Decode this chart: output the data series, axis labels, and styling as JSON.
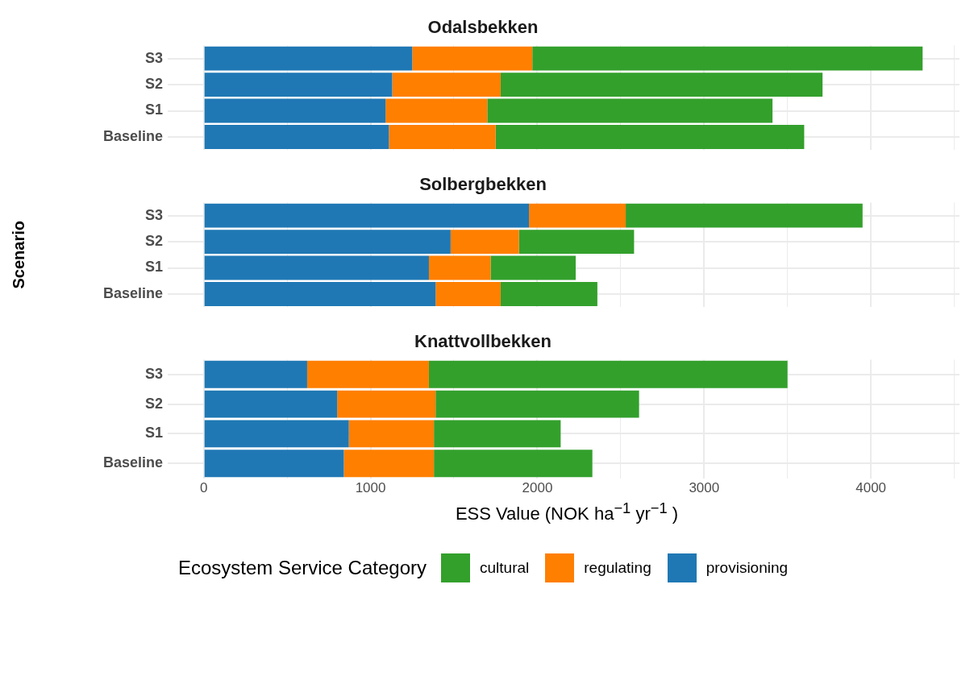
{
  "chart_data": [
    {
      "type": "bar",
      "orientation": "horizontal",
      "stacked": true,
      "title": "Odalsbekken",
      "categories": [
        "S3",
        "S2",
        "S1",
        "Baseline"
      ],
      "series": [
        {
          "color": "#1f78b4",
          "values": [
            1250,
            1130,
            1090,
            1110
          ]
        },
        {
          "color": "#ff7f00",
          "values": [
            720,
            650,
            610,
            640
          ]
        },
        {
          "color": "#33a02c",
          "values": [
            2340,
            1930,
            1710,
            1850
          ]
        }
      ],
      "xlim": [
        -216,
        4531
      ],
      "xticks": [
        0,
        {
          "value": 500,
          "label": null
        },
        1000,
        {
          "value": 1500,
          "label": null
        },
        2000,
        {
          "value": 2500,
          "label": null
        },
        3000,
        {
          "value": 3500,
          "label": null
        },
        4000,
        {
          "value": 4500,
          "label": null
        }
      ],
      "grid": true,
      "tick_labels": "y"
    },
    {
      "type": "bar",
      "orientation": "horizontal",
      "stacked": true,
      "title": "Solbergbekken",
      "ylabel": "Scenario",
      "categories": [
        "S3",
        "S2",
        "S1",
        "Baseline"
      ],
      "series": [
        {
          "color": "#1f78b4",
          "values": [
            1950,
            1480,
            1350,
            1390
          ]
        },
        {
          "color": "#ff7f00",
          "values": [
            580,
            410,
            370,
            390
          ]
        },
        {
          "color": "#33a02c",
          "values": [
            1420,
            690,
            510,
            580
          ]
        }
      ],
      "xlim": [
        -216,
        4531
      ],
      "xticks": [
        0,
        {
          "value": 500,
          "label": null
        },
        1000,
        {
          "value": 1500,
          "label": null
        },
        2000,
        {
          "value": 2500,
          "label": null
        },
        3000,
        {
          "value": 3500,
          "label": null
        },
        4000,
        {
          "value": 4500,
          "label": null
        }
      ],
      "grid": true,
      "tick_labels": "y"
    },
    {
      "type": "bar",
      "orientation": "horizontal",
      "stacked": true,
      "title": "Knattvollbekken",
      "xlabel": "ESS Value (NOK ha$^{−1}$ yr$^{−1}$ )",
      "categories": [
        "S3",
        "S2",
        "S1",
        "Baseline"
      ],
      "series": [
        {
          "name": "provisioning",
          "color": "#1f78b4",
          "values": [
            620,
            800,
            870,
            840
          ]
        },
        {
          "name": "regulating",
          "color": "#ff7f00",
          "values": [
            730,
            590,
            510,
            540
          ]
        },
        {
          "name": "cultural",
          "color": "#33a02c",
          "values": [
            2150,
            1220,
            760,
            950
          ]
        }
      ],
      "xlim": [
        -216,
        4531
      ],
      "xticks": [
        0,
        {
          "value": 500,
          "label": null
        },
        1000,
        {
          "value": 1500,
          "label": null
        },
        2000,
        {
          "value": 2500,
          "label": null
        },
        3000,
        {
          "value": 3500,
          "label": null
        },
        4000,
        {
          "value": 4500,
          "label": null
        }
      ],
      "grid": true,
      "legend": "bottom",
      "legend_title": "Ecosystem Service Category"
    }
  ]
}
